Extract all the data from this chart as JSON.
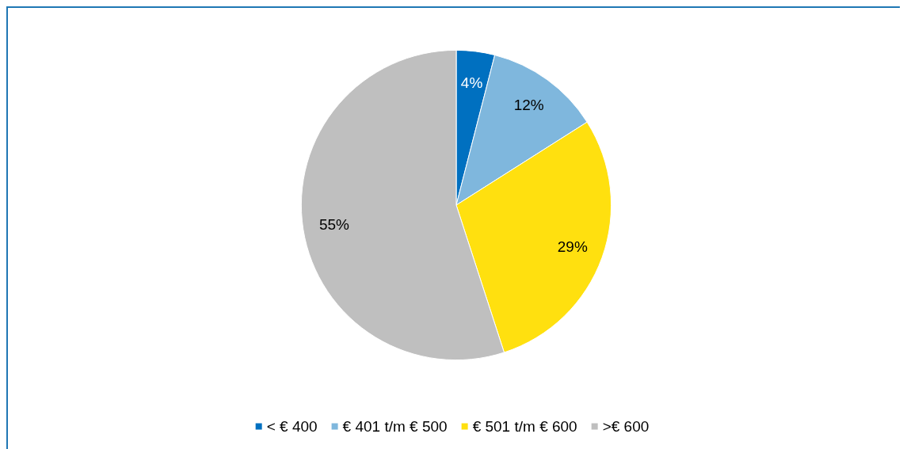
{
  "chart_data": {
    "type": "pie",
    "categories": [
      "< € 400",
      "€ 401 t/m € 500",
      "€ 501 t/m € 600",
      ">€ 600"
    ],
    "values": [
      4,
      12,
      29,
      55
    ],
    "colors": [
      "#0070c0",
      "#7fb7dd",
      "#ffe00f",
      "#bfbfbf"
    ],
    "value_labels": [
      "4%",
      "12%",
      "29%",
      "55%"
    ],
    "legend": "bottom"
  }
}
